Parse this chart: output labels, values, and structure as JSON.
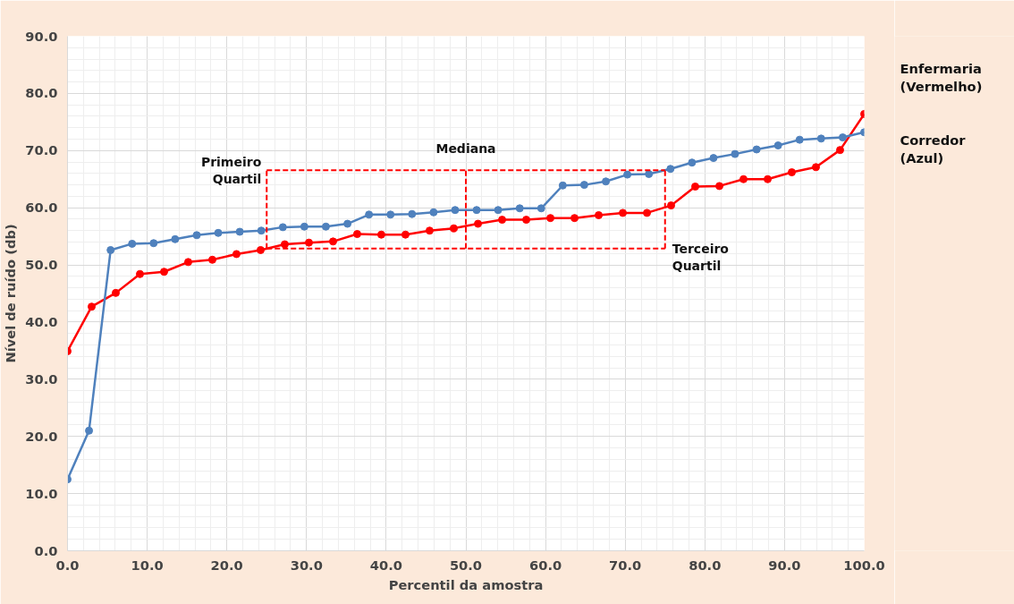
{
  "chart_data": {
    "type": "line",
    "xlabel": "Percentil da amostra",
    "ylabel": "Nível de ruído (db)",
    "xlim": [
      0,
      100
    ],
    "ylim": [
      0,
      90
    ],
    "xticks": [
      {
        "value": 0,
        "label": "0.0"
      },
      {
        "value": 10,
        "label": "10.0"
      },
      {
        "value": 20,
        "label": "20.0"
      },
      {
        "value": 30,
        "label": "30.0"
      },
      {
        "value": 40,
        "label": "40.0"
      },
      {
        "value": 50,
        "label": "50.0"
      },
      {
        "value": 60,
        "label": "60.0"
      },
      {
        "value": 70,
        "label": "70.0"
      },
      {
        "value": 80,
        "label": "80.0"
      },
      {
        "value": 90,
        "label": "90.0"
      },
      {
        "value": 100,
        "label": "100.0"
      }
    ],
    "yticks": [
      {
        "value": 0,
        "label": "0.0"
      },
      {
        "value": 10,
        "label": "10.0"
      },
      {
        "value": 20,
        "label": "20.0"
      },
      {
        "value": 30,
        "label": "30.0"
      },
      {
        "value": 40,
        "label": "40.0"
      },
      {
        "value": 50,
        "label": "50.0"
      },
      {
        "value": 60,
        "label": "60.0"
      },
      {
        "value": 70,
        "label": "70.0"
      },
      {
        "value": 80,
        "label": "80.0"
      },
      {
        "value": 90,
        "label": "90.0"
      }
    ],
    "grid": true,
    "marker": "circle",
    "line_style": "solid",
    "series": [
      {
        "name": "Enfermaria (Vermelho)",
        "color": "#ff0000",
        "x": [
          0,
          3.03,
          6.06,
          9.09,
          12.12,
          15.15,
          18.18,
          21.21,
          24.24,
          27.27,
          30.3,
          33.33,
          36.36,
          39.39,
          42.42,
          45.45,
          48.48,
          51.52,
          54.55,
          57.58,
          60.61,
          63.64,
          66.67,
          69.7,
          72.73,
          75.76,
          78.79,
          81.82,
          84.85,
          87.88,
          90.91,
          93.94,
          96.97,
          100
        ],
        "values": [
          34.9,
          42.7,
          45.1,
          48.4,
          48.8,
          50.5,
          50.9,
          51.9,
          52.6,
          53.6,
          53.9,
          54.1,
          55.4,
          55.3,
          55.3,
          56.0,
          56.4,
          57.2,
          57.9,
          57.9,
          58.2,
          58.2,
          58.7,
          59.1,
          59.1,
          60.4,
          63.7,
          63.8,
          65.0,
          65.0,
          66.2,
          67.1,
          70.1,
          76.4
        ]
      },
      {
        "name": "Corredor (Azul)",
        "color": "#4f81bd",
        "x": [
          0,
          2.7,
          5.41,
          8.11,
          10.81,
          13.51,
          16.22,
          18.92,
          21.62,
          24.32,
          27.03,
          29.73,
          32.43,
          35.14,
          37.84,
          40.54,
          43.24,
          45.95,
          48.65,
          51.35,
          54.05,
          56.76,
          59.46,
          62.16,
          64.86,
          67.57,
          70.27,
          72.97,
          75.68,
          78.38,
          81.08,
          83.78,
          86.49,
          89.19,
          91.89,
          94.59,
          97.3,
          100
        ],
        "values": [
          12.5,
          21.0,
          52.6,
          53.7,
          53.8,
          54.5,
          55.2,
          55.6,
          55.8,
          56.0,
          56.6,
          56.7,
          56.7,
          57.2,
          58.8,
          58.8,
          58.9,
          59.2,
          59.6,
          59.6,
          59.6,
          59.9,
          59.9,
          63.9,
          64.0,
          64.6,
          65.8,
          65.9,
          66.8,
          67.9,
          68.7,
          69.4,
          70.2,
          70.9,
          71.9,
          72.1,
          72.3,
          73.2
        ]
      }
    ],
    "ref_lines": [
      {
        "axis": "x",
        "value": 25,
        "label": "Primeiro\nQuartil",
        "color": "#ff0000",
        "line_style": "dashed"
      },
      {
        "axis": "x",
        "value": 50,
        "label": "Mediana",
        "color": "#ff0000",
        "line_style": "dashed"
      },
      {
        "axis": "x",
        "value": 75,
        "label": "Terceiro\nQuartil",
        "color": "#ff0000",
        "line_style": "dashed"
      }
    ]
  }
}
